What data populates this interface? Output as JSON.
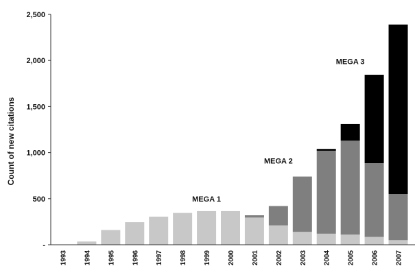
{
  "chart_data": {
    "type": "bar",
    "stacked": true,
    "title": "",
    "xlabel": "",
    "ylabel": "Count of new citations",
    "ylim": [
      0,
      2500
    ],
    "yticks": [
      0,
      500,
      1000,
      1500,
      2000,
      2500
    ],
    "ytick_labels": [
      "-",
      "500",
      "1,000",
      "1,500",
      "2,000",
      "2,500"
    ],
    "grid": false,
    "legend": "none",
    "categories": [
      "1993",
      "1994",
      "1995",
      "1996",
      "1997",
      "1998",
      "1999",
      "2000",
      "2001",
      "2002",
      "2003",
      "2004",
      "2005",
      "2006",
      "2007"
    ],
    "series": [
      {
        "color": "#c8c8c8",
        "values": [
          0,
          35,
          160,
          245,
          305,
          345,
          365,
          365,
          295,
          210,
          140,
          120,
          110,
          85,
          50
        ]
      },
      {
        "color": "#7f7f7f",
        "values": [
          0,
          0,
          0,
          0,
          0,
          0,
          0,
          0,
          25,
          210,
          600,
          900,
          1020,
          800,
          500
        ]
      },
      {
        "color": "#000000",
        "values": [
          0,
          0,
          0,
          0,
          0,
          0,
          0,
          0,
          0,
          0,
          0,
          20,
          180,
          960,
          1840
        ]
      }
    ],
    "annotations": [
      {
        "text": "MEGA 1",
        "category": "1999",
        "y": 470
      },
      {
        "text": "MEGA 2",
        "category": "2002",
        "y": 880
      },
      {
        "text": "MEGA 3",
        "category": "2005",
        "y": 1960
      }
    ]
  }
}
